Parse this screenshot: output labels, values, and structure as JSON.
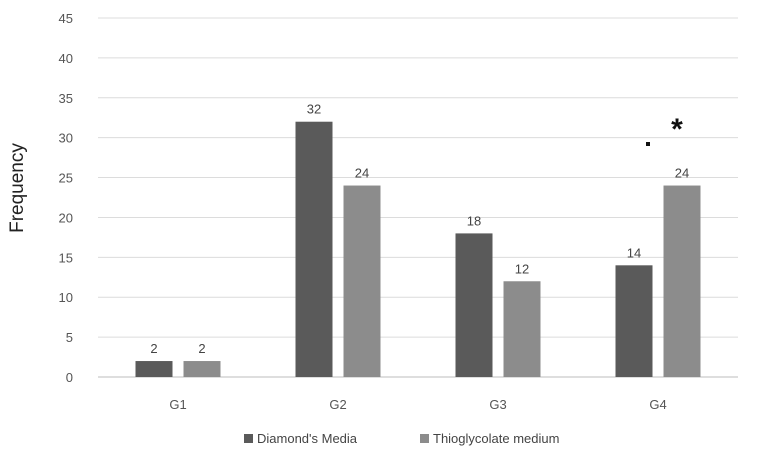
{
  "chart_data": {
    "type": "bar",
    "categories": [
      "G1",
      "G2",
      "G3",
      "G4"
    ],
    "series": [
      {
        "name": "Diamond's Media",
        "values": [
          2,
          32,
          18,
          14
        ],
        "color": "#5a5a5a"
      },
      {
        "name": "Thioglycolate medium",
        "values": [
          2,
          24,
          12,
          24
        ],
        "color": "#8c8c8c"
      }
    ],
    "data_labels": true,
    "title": "",
    "xlabel": "",
    "ylabel": "Frequency",
    "ylim": [
      0,
      45
    ],
    "yticks": [
      0,
      5,
      10,
      15,
      20,
      25,
      30,
      35,
      40,
      45
    ],
    "grid": true,
    "legend_position": "bottom",
    "annotations": [
      {
        "text": "*",
        "category": "G4"
      }
    ]
  }
}
